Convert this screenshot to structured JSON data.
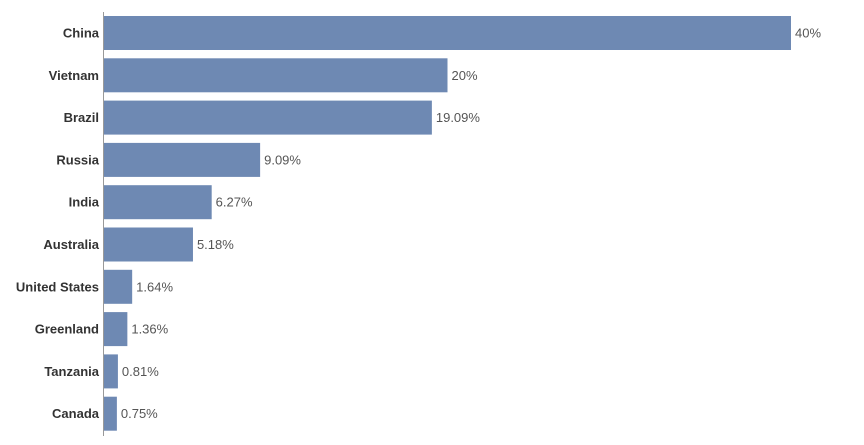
{
  "chart_data": {
    "type": "bar",
    "orientation": "horizontal",
    "categories": [
      "China",
      "Vietnam",
      "Brazil",
      "Russia",
      "India",
      "Australia",
      "United States",
      "Greenland",
      "Tanzania",
      "Canada"
    ],
    "values": [
      40,
      20,
      19.09,
      9.09,
      6.27,
      5.18,
      1.64,
      1.36,
      0.81,
      0.75
    ],
    "value_labels": [
      "40%",
      "20%",
      "19.09%",
      "9.09%",
      "6.27%",
      "5.18%",
      "1.64%",
      "1.36%",
      "0.81%",
      "0.75%"
    ],
    "xlim": [
      0,
      40
    ],
    "grid": false,
    "bar_color": "#6e89b3"
  }
}
